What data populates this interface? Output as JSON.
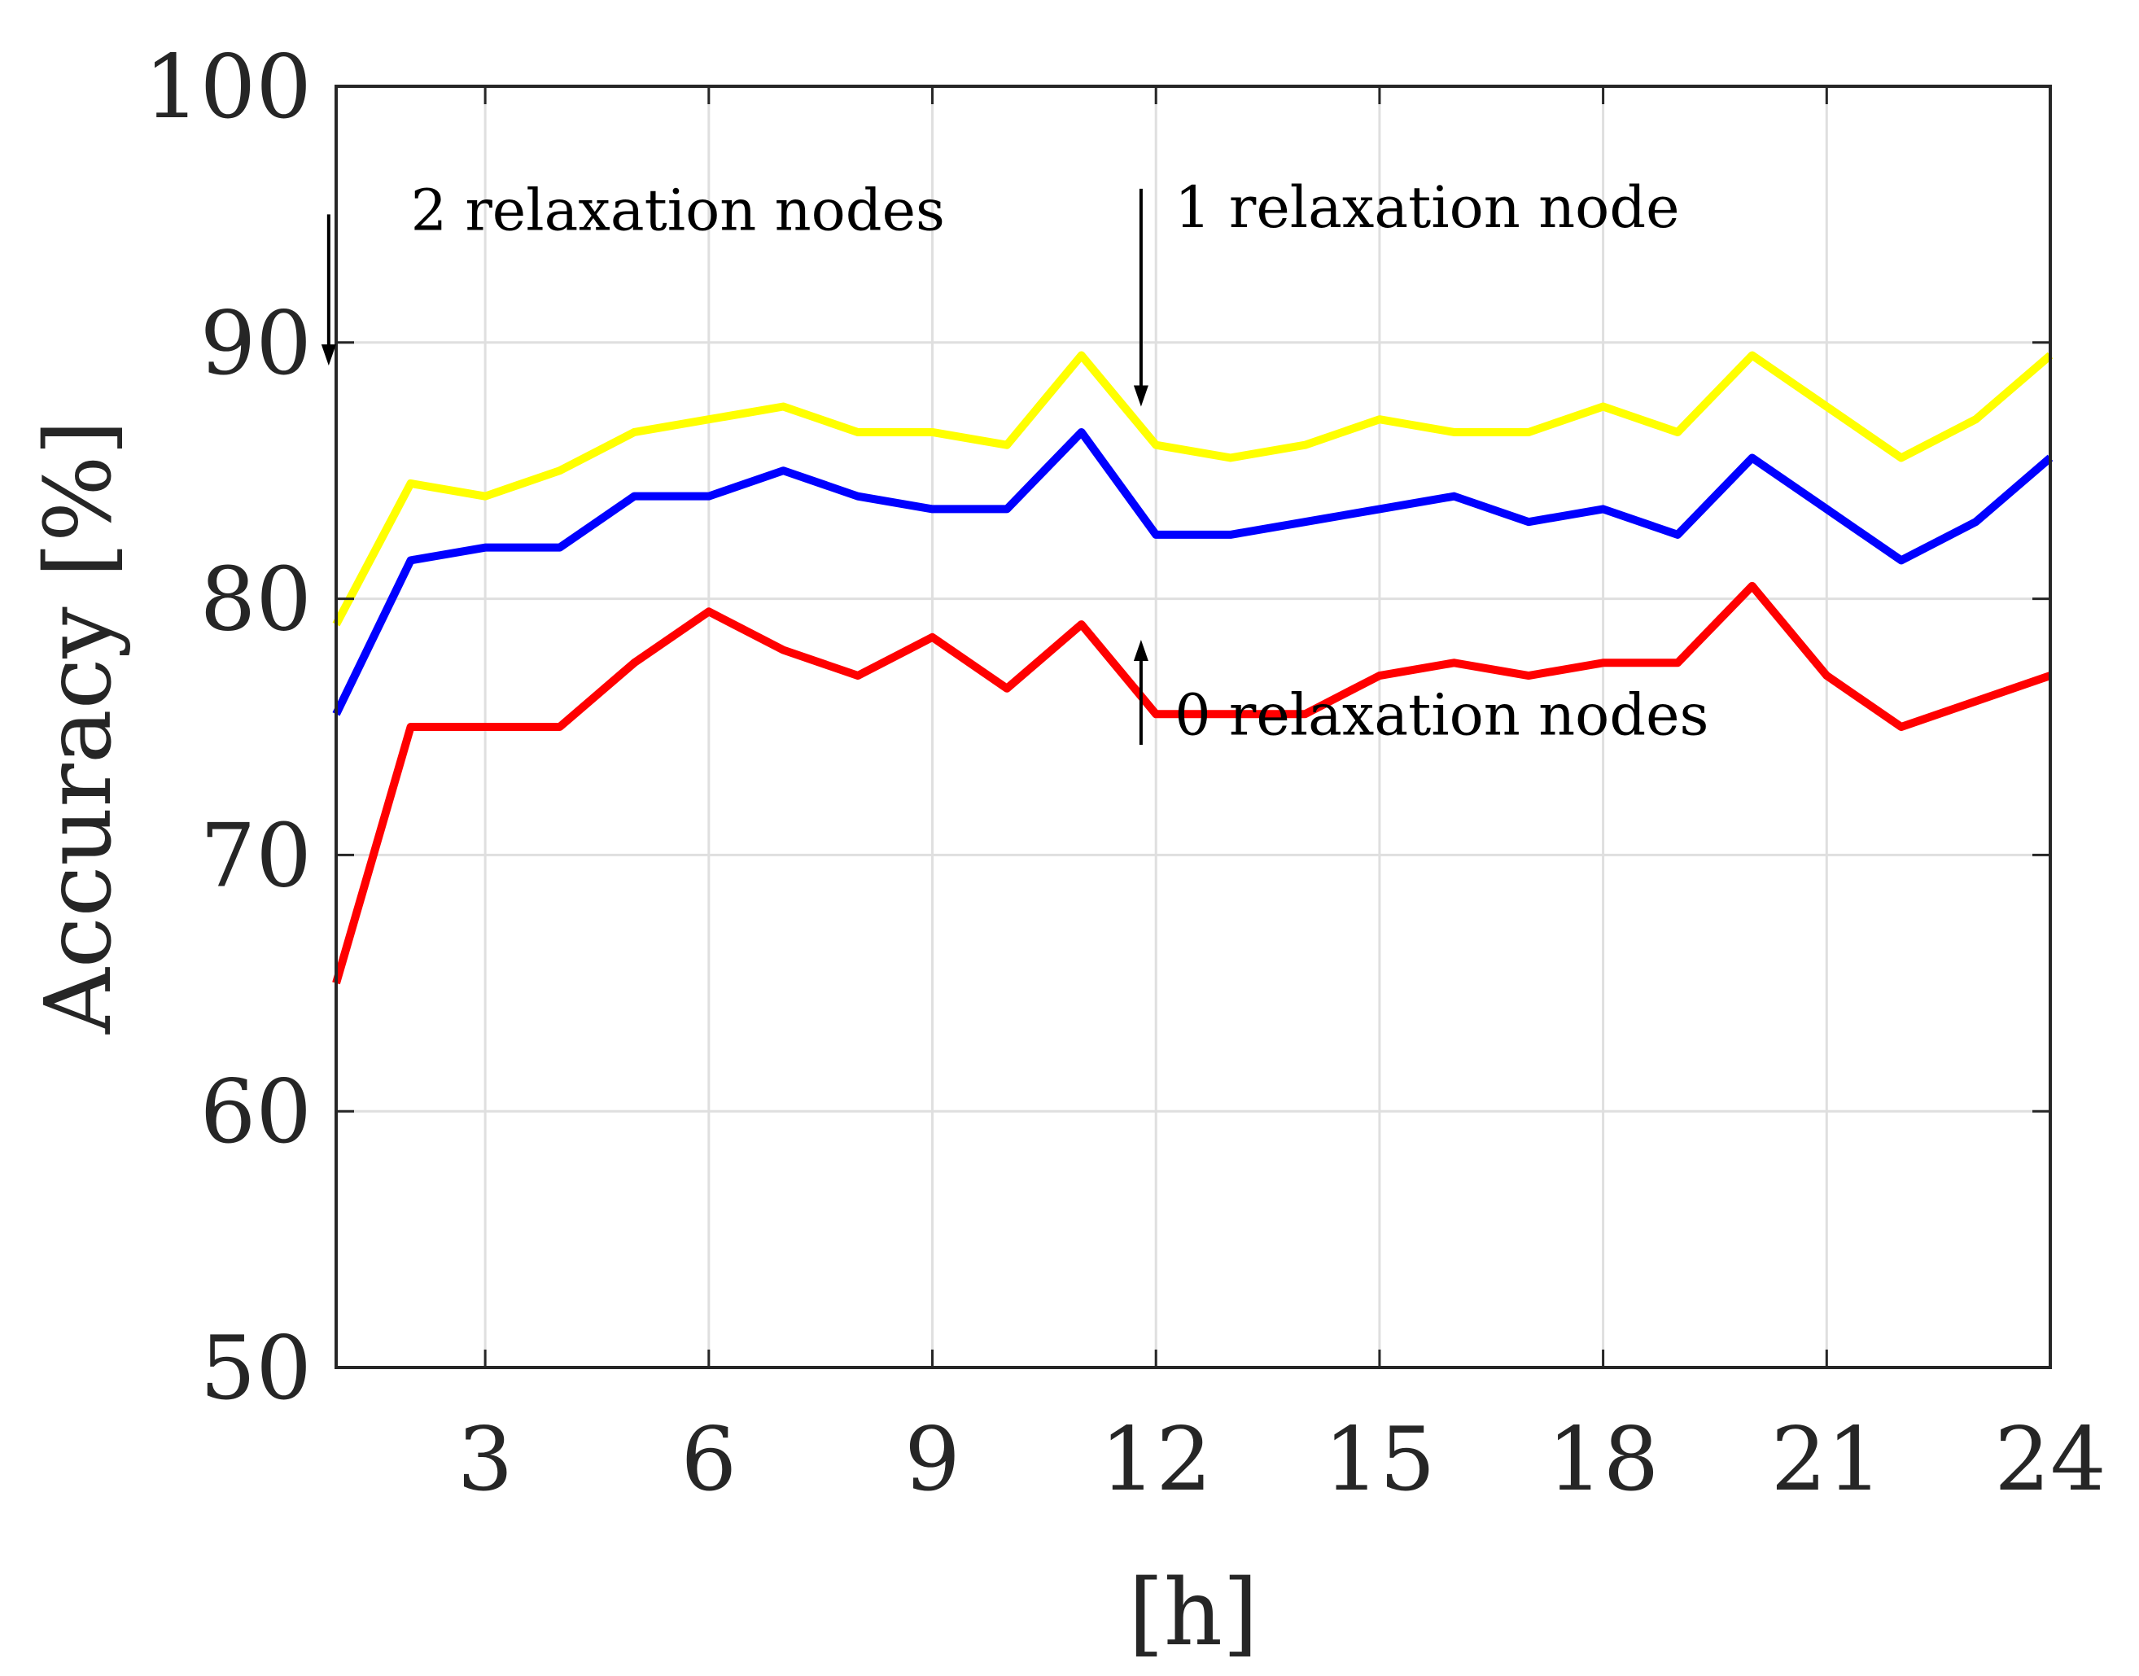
{
  "chart_data": {
    "type": "line",
    "title": "",
    "xlabel": "[h]",
    "ylabel": "Accuracy [%]",
    "xlim": [
      1,
      24
    ],
    "ylim": [
      50,
      100
    ],
    "x_ticks": [
      3,
      6,
      9,
      12,
      15,
      18,
      21,
      24
    ],
    "y_ticks": [
      50,
      60,
      70,
      80,
      90,
      100
    ],
    "grid": true,
    "x": [
      1,
      2,
      3,
      4,
      5,
      6,
      7,
      8,
      9,
      10,
      11,
      12,
      13,
      14,
      15,
      16,
      17,
      18,
      19,
      20,
      21,
      22,
      23,
      24
    ],
    "series": [
      {
        "name": "2 relaxation nodes",
        "color": "#ffff00",
        "values": [
          79,
          84.5,
          84,
          85,
          86.5,
          87,
          87.5,
          86.5,
          86.5,
          86,
          89.5,
          86,
          85.5,
          86,
          87,
          86.5,
          86.5,
          87.5,
          86.5,
          89.5,
          87.5,
          85.5,
          87,
          89.5
        ]
      },
      {
        "name": "1 relaxation node",
        "color": "#0000ff",
        "values": [
          75.5,
          81.5,
          82,
          82,
          84,
          84,
          85,
          84,
          83.5,
          83.5,
          86.5,
          82.5,
          82.5,
          83,
          83.5,
          84,
          83,
          83.5,
          82.5,
          85.5,
          83.5,
          81.5,
          83,
          85.5
        ]
      },
      {
        "name": "0 relaxation nodes",
        "color": "#ff0000",
        "values": [
          65,
          75,
          75,
          75,
          77.5,
          79.5,
          78,
          77,
          78.5,
          76.5,
          79,
          75.5,
          75.5,
          75.5,
          77,
          77.5,
          77,
          77.5,
          77.5,
          80.5,
          77,
          75,
          76,
          77
        ]
      }
    ],
    "annotations": [
      {
        "text": "2 relaxation nodes",
        "text_at": [
          2.0,
          94.4
        ],
        "arrow_x": 0.9,
        "arrow_from": 95,
        "arrow_to": 89.1,
        "direction": "down"
      },
      {
        "text": "1 relaxation node",
        "text_at": [
          12.25,
          94.5
        ],
        "arrow_x": 11.8,
        "arrow_from": 96,
        "arrow_to": 87.5,
        "direction": "down"
      },
      {
        "text": "0 relaxation nodes",
        "text_at": [
          12.25,
          74.7
        ],
        "arrow_x": 11.8,
        "arrow_from": 74.3,
        "arrow_to": 78.4,
        "direction": "up"
      }
    ]
  }
}
